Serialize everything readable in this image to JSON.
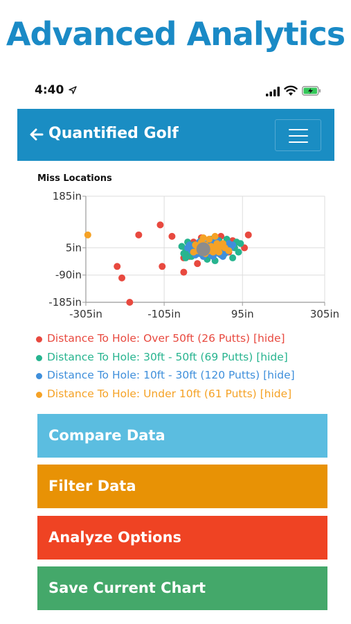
{
  "promo": {
    "title": "Advanced Analytics"
  },
  "status_bar": {
    "time": "4:40"
  },
  "header": {
    "title": "Quantified Golf"
  },
  "chart_data": {
    "type": "scatter",
    "title": "Miss Locations",
    "xlabel": "",
    "ylabel": "",
    "xlim": [
      -305,
      305
    ],
    "ylim": [
      -185,
      185
    ],
    "x_ticks": [
      "-305in",
      "-105in",
      "95in",
      "305in"
    ],
    "x_tick_values": [
      -305,
      -105,
      95,
      305
    ],
    "y_ticks": [
      "185in",
      "5in",
      "-90in",
      "-185in"
    ],
    "y_tick_values": [
      185,
      5,
      -90,
      -185
    ],
    "grid": true,
    "series": [
      {
        "name": "Distance To Hole: Over 50ft (26 Putts)",
        "color": "#e8493f",
        "points": [
          [
            -193,
            -185
          ],
          [
            -213,
            -100
          ],
          [
            -225,
            -60
          ],
          [
            -170,
            50
          ],
          [
            -115,
            85
          ],
          [
            -110,
            -60
          ],
          [
            -85,
            45
          ],
          [
            -55,
            -80
          ],
          [
            -40,
            -25
          ],
          [
            40,
            45
          ],
          [
            110,
            50
          ],
          [
            100,
            5
          ],
          [
            -30,
            25
          ],
          [
            -10,
            40
          ],
          [
            20,
            10
          ],
          [
            60,
            -10
          ],
          [
            70,
            30
          ],
          [
            -20,
            -50
          ],
          [
            -55,
            -30
          ]
        ]
      },
      {
        "name": "Distance To Hole: 30ft - 50ft (69 Putts)",
        "color": "#27b48f",
        "points": [
          [
            -50,
            0
          ],
          [
            -60,
            10
          ],
          [
            -40,
            -10
          ],
          [
            -30,
            15
          ],
          [
            -20,
            -5
          ],
          [
            -10,
            30
          ],
          [
            0,
            -20
          ],
          [
            10,
            10
          ],
          [
            20,
            -5
          ],
          [
            30,
            20
          ],
          [
            40,
            0
          ],
          [
            50,
            -15
          ],
          [
            60,
            10
          ],
          [
            70,
            -30
          ],
          [
            80,
            25
          ],
          [
            85,
            -10
          ],
          [
            -45,
            25
          ],
          [
            -55,
            -15
          ],
          [
            5,
            -35
          ],
          [
            15,
            35
          ],
          [
            25,
            -40
          ],
          [
            35,
            30
          ],
          [
            45,
            -5
          ],
          [
            -50,
            -30
          ],
          [
            75,
            5
          ],
          [
            90,
            20
          ],
          [
            -35,
            -25
          ],
          [
            55,
            35
          ]
        ]
      },
      {
        "name": "Distance To Hole: 10ft - 30ft (120 Putts)",
        "color": "#3f8fdb",
        "points": [
          [
            -30,
            0
          ],
          [
            -20,
            10
          ],
          [
            -10,
            -10
          ],
          [
            0,
            5
          ],
          [
            10,
            -15
          ],
          [
            20,
            15
          ],
          [
            30,
            -5
          ],
          [
            40,
            10
          ],
          [
            50,
            0
          ],
          [
            60,
            20
          ],
          [
            -25,
            -20
          ],
          [
            -15,
            25
          ],
          [
            -5,
            -25
          ],
          [
            5,
            20
          ],
          [
            15,
            -20
          ],
          [
            25,
            25
          ],
          [
            35,
            -15
          ],
          [
            45,
            -25
          ],
          [
            55,
            -10
          ],
          [
            -40,
            15
          ],
          [
            65,
            5
          ],
          [
            -35,
            -5
          ],
          [
            0,
            -5
          ],
          [
            10,
            25
          ],
          [
            -5,
            15
          ],
          [
            20,
            -25
          ],
          [
            30,
            30
          ],
          [
            40,
            -20
          ],
          [
            -15,
            -15
          ],
          [
            50,
            15
          ],
          [
            -45,
            5
          ],
          [
            70,
            15
          ]
        ]
      },
      {
        "name": "Distance To Hole: Under 10ft (61 Putts)",
        "color": "#f5a226",
        "points": [
          [
            -300,
            50
          ],
          [
            -10,
            5
          ],
          [
            0,
            15
          ],
          [
            10,
            -5
          ],
          [
            -5,
            -10
          ],
          [
            5,
            0
          ],
          [
            15,
            10
          ],
          [
            -15,
            5
          ],
          [
            20,
            -10
          ],
          [
            25,
            5
          ],
          [
            -20,
            -5
          ],
          [
            30,
            20
          ],
          [
            40,
            10
          ],
          [
            35,
            -10
          ],
          [
            -25,
            15
          ],
          [
            -10,
            25
          ],
          [
            50,
            5
          ],
          [
            45,
            20
          ],
          [
            0,
            -15
          ],
          [
            10,
            35
          ],
          [
            -30,
            -10
          ],
          [
            60,
            -5
          ],
          [
            25,
            45
          ],
          [
            -5,
            40
          ]
        ]
      }
    ],
    "mean_marker": {
      "x": -5,
      "y": 0,
      "color": "#8c8c8c"
    }
  },
  "legend": [
    {
      "text": "Distance To Hole: Over 50ft (26 Putts) [hide]",
      "color": "#e8493f"
    },
    {
      "text": "Distance To Hole: 30ft - 50ft (69 Putts) [hide]",
      "color": "#27b48f"
    },
    {
      "text": "Distance To Hole: 10ft - 30ft (120 Putts) [hide]",
      "color": "#3f8fdb"
    },
    {
      "text": "Distance To Hole: Under 10ft (61 Putts) [hide]",
      "color": "#f5a226"
    }
  ],
  "buttons": {
    "compare": "Compare Data",
    "filter": "Filter Data",
    "analyze": "Analyze Options",
    "save": "Save Current Chart"
  },
  "icons": [
    "location-arrow-icon",
    "signal-icon",
    "wifi-icon",
    "battery-icon",
    "back-arrow-icon",
    "hamburger-menu-icon"
  ]
}
